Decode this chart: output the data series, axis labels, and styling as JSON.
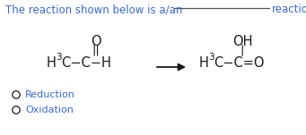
{
  "title_text": "The reaction shown below is a/an",
  "title_color": "#3a6bc9",
  "reaction_color": "#1a1a1a",
  "underline_color": "#555555",
  "option_text_color": "#3a6bc9",
  "bg_color": "#ffffff",
  "reaction_word": "reaction.",
  "option1": "Reduction",
  "option2": "Oxidation",
  "font_size_title": 8.5,
  "font_size_molecule": 10.5,
  "font_size_sub": 7.5,
  "font_size_options": 8.0
}
